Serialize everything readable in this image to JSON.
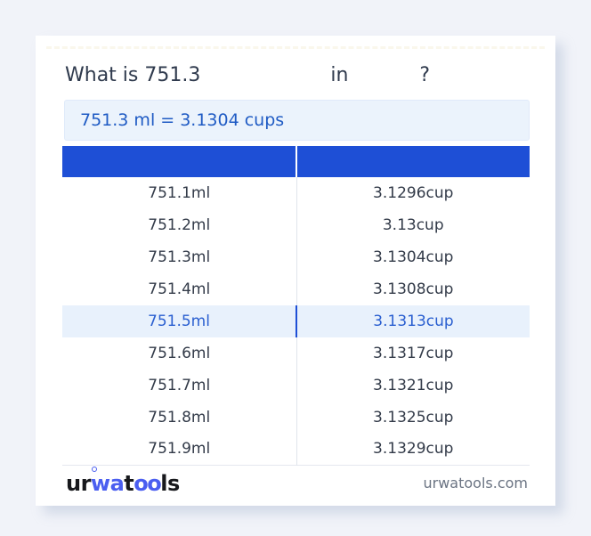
{
  "title": {
    "prefix": "What is 751.3",
    "connector": "in",
    "suffix": "?"
  },
  "result_text": "751.3 ml = 3.1304 cups",
  "table": {
    "headers": [
      "",
      ""
    ],
    "rows": [
      {
        "ml": "751.1ml",
        "cup": "3.1296cup",
        "highlighted": false
      },
      {
        "ml": "751.2ml",
        "cup": "3.13cup",
        "highlighted": false
      },
      {
        "ml": "751.3ml",
        "cup": "3.1304cup",
        "highlighted": false
      },
      {
        "ml": "751.4ml",
        "cup": "3.1308cup",
        "highlighted": false
      },
      {
        "ml": "751.5ml",
        "cup": "3.1313cup",
        "highlighted": true
      },
      {
        "ml": "751.6ml",
        "cup": "3.1317cup",
        "highlighted": false
      },
      {
        "ml": "751.7ml",
        "cup": "3.1321cup",
        "highlighted": false
      },
      {
        "ml": "751.8ml",
        "cup": "3.1325cup",
        "highlighted": false
      },
      {
        "ml": "751.9ml",
        "cup": "3.1329cup",
        "highlighted": false
      }
    ]
  },
  "footer": {
    "logo_parts": [
      "ur",
      "wa",
      "t",
      "oo",
      "ls"
    ],
    "site": "urwatools.com"
  },
  "colors": {
    "page_bg": "#f1f3f9",
    "card_bg": "#ffffff",
    "header_blue": "#1e4fd6",
    "result_bg": "#ebf3fc",
    "result_text": "#1f5bc4",
    "highlight_bg": "#e8f1fc",
    "highlight_text": "#2a5fd0",
    "cell_text": "#333b49",
    "logo_blue": "#4a5ef0"
  }
}
